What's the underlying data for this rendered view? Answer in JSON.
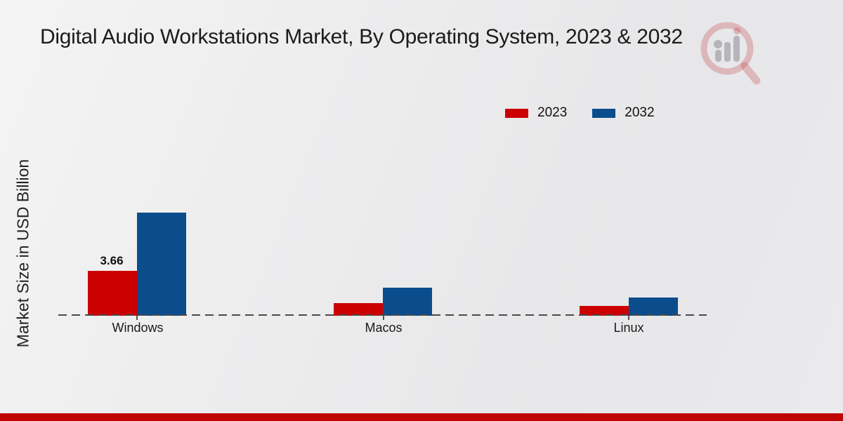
{
  "page": {
    "title": "Digital Audio Workstations Market, By Operating System, 2023 & 2032",
    "background_color": "#eaeaec",
    "footer_bar_color": "#c00404",
    "watermark_icon": "magnifier-bar-chart-logo"
  },
  "chart_data": {
    "type": "bar",
    "title": "Digital Audio Workstations Market, By Operating System, 2023 & 2032",
    "xlabel": "",
    "ylabel": "Market Size in USD Billion",
    "categories": [
      "Windows",
      "Macos",
      "Linux"
    ],
    "series": [
      {
        "name": "2023",
        "color": "#cc0000",
        "values": [
          3.66,
          1.05,
          0.8
        ]
      },
      {
        "name": "2032",
        "color": "#0b4d8c",
        "values": [
          8.4,
          2.3,
          1.5
        ]
      }
    ],
    "bar_labels": [
      {
        "series": "2023",
        "category": "Windows",
        "text": "3.66"
      }
    ],
    "legend_position": "top-right",
    "grid": false,
    "baseline_style": "dashed",
    "ylim": [
      0,
      9
    ]
  }
}
